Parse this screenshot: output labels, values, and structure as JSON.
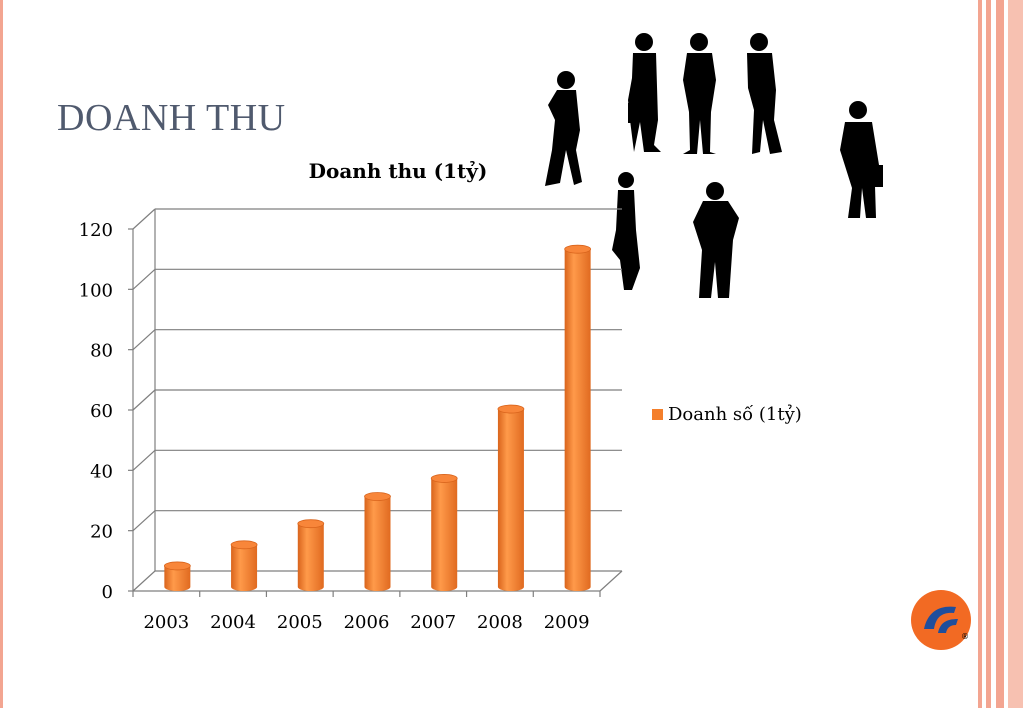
{
  "slide": {
    "title": "DOANH THU"
  },
  "colors": {
    "title": "#505a6e",
    "bar": "#f47f2b",
    "grid": "#7f7f7f",
    "border_stripes": "#f3a591",
    "logo": "#f26a23"
  },
  "chart_data": {
    "type": "bar",
    "title": "Doanh thu (1tỷ)",
    "categories": [
      "2003",
      "2004",
      "2005",
      "2006",
      "2007",
      "2008",
      "2009"
    ],
    "series": [
      {
        "name": "Doanh số (1tỷ)",
        "values": [
          5,
          12,
          19,
          28,
          34,
          57,
          110
        ]
      }
    ],
    "ylim": [
      0,
      120
    ],
    "yticks": [
      0,
      20,
      40,
      60,
      80,
      100,
      120
    ],
    "grid": true,
    "legend": "right",
    "style": "3d-cylinder"
  },
  "decorations": {
    "silhouettes_icon": "business-people-silhouettes-icon",
    "logo_icon": "company-logo-icon"
  }
}
